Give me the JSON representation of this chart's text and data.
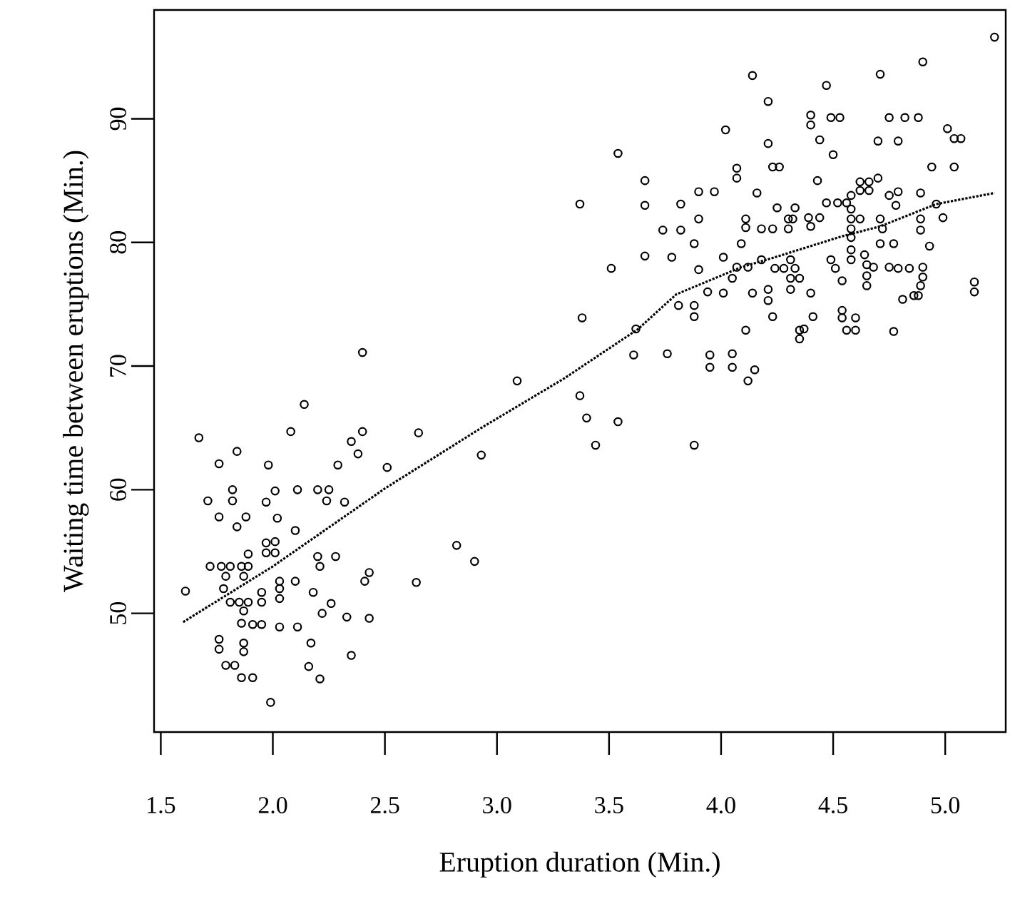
{
  "chart_data": {
    "type": "scatter",
    "xlabel": "Eruption duration (Min.)",
    "ylabel": "Waiting time between eruptions (Min.)",
    "xlim": [
      1.47,
      5.27
    ],
    "ylim": [
      40.4,
      98.8
    ],
    "xticks": [
      {
        "value": 1.5,
        "label": "1.5"
      },
      {
        "value": 2.0,
        "label": "2.0"
      },
      {
        "value": 2.5,
        "label": "2.5"
      },
      {
        "value": 3.0,
        "label": "3.0"
      },
      {
        "value": 3.5,
        "label": "3.5"
      },
      {
        "value": 4.0,
        "label": "4.0"
      },
      {
        "value": 4.5,
        "label": "4.5"
      },
      {
        "value": 5.0,
        "label": "5.0"
      }
    ],
    "yticks": [
      50,
      60,
      70,
      80,
      90
    ],
    "marker": "circle",
    "series": [
      {
        "color": "#000000",
        "x": [
          1.67,
          1.84,
          1.76,
          1.98,
          2.08,
          2.29,
          2.35,
          2.38,
          2.4,
          2.65,
          2.51,
          2.93,
          1.71,
          1.76,
          1.82,
          1.82,
          1.84,
          1.88,
          1.97,
          2.01,
          2.02,
          2.11,
          2.1,
          2.2,
          2.25,
          2.24,
          2.32,
          1.97,
          2.01,
          1.97,
          2.01,
          1.89,
          2.2,
          2.21,
          2.28,
          2.43,
          2.41,
          2.64,
          2.82,
          2.9,
          1.61,
          1.72,
          1.77,
          1.81,
          1.86,
          1.89,
          1.79,
          1.87,
          1.78,
          1.81,
          1.85,
          1.89,
          1.87,
          1.95,
          1.95,
          2.03,
          2.03,
          2.03,
          2.1,
          2.18,
          2.26,
          2.22,
          2.33,
          2.43,
          1.86,
          1.91,
          1.95,
          2.03,
          2.11,
          1.76,
          1.76,
          1.87,
          1.87,
          1.79,
          1.83,
          1.86,
          1.91,
          2.17,
          2.16,
          2.21,
          2.35,
          1.99,
          2.14,
          2.4,
          3.09,
          3.37,
          3.38,
          3.37,
          3.4,
          3.54,
          3.44,
          3.88,
          3.54,
          3.51,
          3.66,
          3.66,
          3.66,
          3.62,
          3.61,
          3.76,
          3.78,
          3.74,
          3.82,
          3.82,
          3.9,
          3.97,
          3.9,
          3.88,
          3.9,
          3.81,
          3.88,
          3.88,
          3.94,
          4.01,
          3.95,
          3.95,
          4.05,
          4.05,
          4.15,
          4.12,
          4.02,
          4.01,
          4.05,
          4.07,
          4.09,
          4.14,
          4.21,
          4.21,
          4.07,
          4.07,
          4.16,
          4.11,
          4.11,
          4.18,
          4.23,
          4.18,
          4.12,
          4.14,
          4.21,
          4.21,
          4.23,
          4.11,
          4.23,
          4.26,
          4.25,
          4.3,
          4.3,
          4.33,
          4.32,
          4.24,
          4.28,
          4.31,
          4.33,
          4.31,
          4.35,
          4.31,
          4.35,
          4.35,
          4.4,
          4.41,
          4.43,
          4.4,
          4.4,
          4.49,
          4.53,
          4.47,
          4.44,
          4.5,
          4.39,
          4.44,
          4.4,
          4.47,
          4.52,
          4.56,
          4.58,
          4.58,
          4.58,
          4.58,
          4.58,
          4.58,
          4.58,
          4.62,
          4.62,
          4.66,
          4.7,
          4.62,
          4.66,
          4.49,
          4.51,
          4.54,
          4.54,
          4.54,
          4.56,
          4.6,
          4.6,
          4.64,
          4.65,
          4.65,
          4.65,
          4.68,
          4.75,
          4.79,
          4.84,
          4.9,
          4.9,
          4.89,
          4.88,
          4.86,
          4.81,
          4.71,
          4.72,
          4.71,
          4.77,
          4.75,
          4.79,
          4.78,
          4.7,
          4.79,
          4.75,
          4.82,
          4.88,
          4.71,
          4.9,
          4.89,
          4.89,
          4.89,
          4.93,
          4.96,
          4.99,
          4.94,
          5.04,
          5.01,
          5.04,
          5.07,
          4.77,
          5.13,
          5.13,
          5.22,
          4.37
        ],
        "values": [
          64.2,
          63.1,
          62.1,
          62.0,
          64.7,
          62.0,
          63.9,
          62.9,
          64.7,
          64.6,
          61.8,
          62.8,
          59.1,
          57.8,
          60.0,
          59.1,
          57.0,
          57.8,
          59.0,
          59.9,
          57.7,
          60.0,
          56.7,
          60.0,
          60.0,
          59.1,
          59.0,
          55.7,
          55.8,
          54.9,
          54.9,
          54.8,
          54.6,
          53.8,
          54.6,
          53.3,
          52.6,
          52.5,
          55.5,
          54.2,
          51.8,
          53.8,
          53.8,
          53.8,
          53.8,
          53.8,
          53.0,
          53.0,
          52.0,
          50.9,
          50.9,
          50.9,
          50.2,
          51.7,
          50.9,
          52.6,
          52.0,
          51.2,
          52.6,
          51.7,
          50.8,
          50.0,
          49.7,
          49.6,
          49.2,
          49.1,
          49.1,
          48.9,
          48.9,
          47.9,
          47.1,
          47.6,
          46.9,
          45.8,
          45.8,
          44.8,
          44.8,
          47.6,
          45.7,
          44.7,
          46.6,
          42.8,
          66.9,
          71.1,
          68.8,
          83.1,
          73.9,
          67.6,
          65.8,
          65.5,
          63.6,
          63.6,
          87.2,
          77.9,
          85.0,
          83.0,
          78.9,
          73.0,
          70.9,
          71.0,
          78.8,
          81.0,
          81.0,
          83.1,
          84.1,
          84.1,
          81.9,
          79.9,
          77.8,
          74.9,
          74.9,
          74.0,
          76.0,
          75.9,
          70.9,
          69.9,
          71.0,
          69.9,
          69.7,
          68.8,
          89.1,
          78.8,
          77.1,
          78.0,
          79.9,
          93.5,
          91.4,
          88.0,
          86.0,
          85.2,
          84.0,
          81.9,
          81.2,
          81.1,
          81.1,
          78.6,
          78.0,
          75.9,
          76.2,
          75.3,
          74.0,
          72.9,
          86.1,
          86.1,
          82.8,
          81.9,
          81.1,
          82.8,
          81.9,
          77.9,
          77.9,
          78.6,
          77.9,
          77.1,
          77.1,
          76.2,
          72.9,
          72.2,
          75.9,
          74.0,
          85.0,
          90.3,
          89.5,
          90.1,
          90.1,
          92.7,
          88.3,
          87.1,
          82.0,
          82.0,
          81.3,
          83.2,
          83.2,
          83.2,
          83.8,
          82.7,
          81.9,
          81.1,
          80.4,
          79.4,
          78.6,
          81.9,
          84.9,
          84.9,
          85.2,
          84.2,
          84.2,
          78.6,
          77.9,
          76.9,
          74.5,
          73.9,
          72.9,
          72.9,
          73.9,
          79.0,
          78.2,
          77.3,
          76.5,
          78.0,
          78.0,
          77.9,
          77.9,
          78.0,
          77.2,
          76.5,
          75.7,
          75.7,
          75.4,
          81.9,
          81.1,
          79.9,
          79.9,
          83.8,
          84.1,
          83.0,
          88.2,
          88.2,
          90.1,
          90.1,
          90.1,
          93.6,
          94.6,
          84.0,
          81.9,
          81.0,
          79.7,
          83.1,
          82.0,
          86.1,
          86.1,
          89.2,
          88.4,
          88.4,
          72.8,
          76.8,
          76.0,
          96.6,
          73.0
        ]
      },
      {
        "type": "line",
        "color": "#000000",
        "line_style": "dotted",
        "marker": "none",
        "x": [
          1.6,
          2.0,
          2.5,
          2.93,
          3.3,
          3.63,
          3.8,
          4.09,
          4.24,
          4.54,
          4.71,
          4.96,
          5.22
        ],
        "values": [
          49.3,
          53.8,
          60.1,
          65.0,
          69.0,
          73.0,
          75.8,
          78.0,
          78.8,
          80.5,
          81.3,
          83.1,
          84.0
        ]
      }
    ]
  }
}
